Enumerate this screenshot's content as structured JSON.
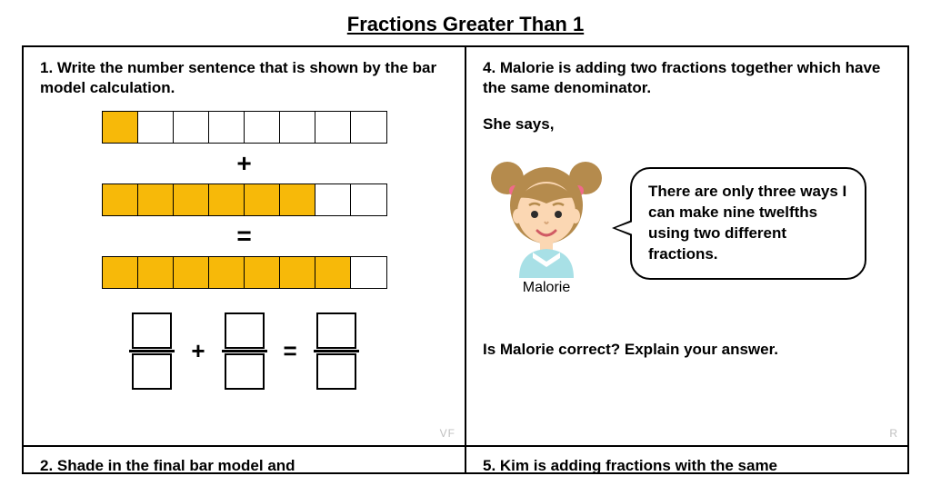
{
  "title": "Fractions Greater Than 1",
  "q1": {
    "prompt": "1. Write the number sentence that is shown by the bar model calculation.",
    "bar_rows": [
      {
        "cells": 8,
        "filled": 1
      },
      {
        "cells": 8,
        "filled": 6
      },
      {
        "cells": 8,
        "filled": 7
      }
    ],
    "ops": [
      "+",
      "="
    ],
    "frac_ops": [
      "+",
      "="
    ],
    "tag": "VF",
    "colors": {
      "fill": "#f7b909",
      "border": "#000000"
    }
  },
  "q4": {
    "prompt": "4. Malorie is adding two fractions together which have the same denominator.",
    "she_says": "She says,",
    "speech": "There are only three ways I can make nine twelfths using two different fractions.",
    "name": "Malorie",
    "followup": "Is Malorie correct? Explain your answer.",
    "tag": "R",
    "avatar": {
      "hair": "#b58b4d",
      "hair_tie": "#f06a8a",
      "skin": "#fbd7b3",
      "eye": "#2c2c2c",
      "mouth": "#d05a63",
      "shirt": "#a8e0e6",
      "collar": "#ffffff"
    }
  },
  "q2": {
    "prompt": "2. Shade in the final bar model and"
  },
  "q5": {
    "prompt": "5. Kim is adding fractions with the same"
  }
}
